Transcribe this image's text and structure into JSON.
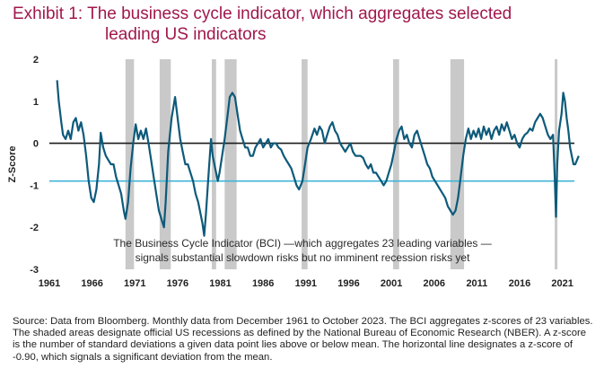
{
  "title_line1": "Exhibit 1: The business cycle indicator, which aggregates selected",
  "title_line2": "leading US indicators",
  "source": "Source: Data from Bloomberg. Monthly data from December 1961 to October 2023. The BCI aggregates z-scores of 23 variables. The shaded areas designate official US recessions as defined by the National Bureau of Economic Research (NBER). A z-score is the number of standard deviations a given data point lies above or below mean. The horizontal line designates a z-score of -0.90, which signals a significant deviation from the mean.",
  "chart_data": {
    "type": "line",
    "ylabel": "Z-Score",
    "xlabel": "",
    "xlim": [
      1961,
      2022.4
    ],
    "ylim": [
      -3,
      2
    ],
    "x_ticks": [
      1961,
      1966,
      1971,
      1976,
      1981,
      1986,
      1991,
      1996,
      2001,
      2006,
      2011,
      2016,
      2021
    ],
    "y_ticks": [
      2,
      1,
      0,
      -1,
      -2,
      -3
    ],
    "threshold": -0.9,
    "zero_line": 0,
    "annotation_line1": "The Business Cycle Indicator (BCI) —which aggregates 23 leading variables —",
    "annotation_line2": "signals substantial slowdown risks but no imminent recession risks yet",
    "recessions": [
      [
        1969.9,
        1970.9
      ],
      [
        1973.9,
        1975.2
      ],
      [
        1980.0,
        1980.5
      ],
      [
        1981.5,
        1982.9
      ],
      [
        1990.5,
        1991.2
      ],
      [
        2001.2,
        2001.9
      ],
      [
        2007.9,
        2009.5
      ],
      [
        2020.1,
        2020.4
      ]
    ],
    "series": [
      {
        "color": "#0d5a7a",
        "points": [
          [
            1961.9,
            1.5
          ],
          [
            1962.1,
            1.0
          ],
          [
            1962.4,
            0.5
          ],
          [
            1962.6,
            0.2
          ],
          [
            1962.9,
            0.1
          ],
          [
            1963.2,
            0.3
          ],
          [
            1963.5,
            0.1
          ],
          [
            1963.8,
            0.5
          ],
          [
            1964.1,
            0.6
          ],
          [
            1964.4,
            0.3
          ],
          [
            1964.7,
            0.5
          ],
          [
            1965.0,
            0.2
          ],
          [
            1965.3,
            -0.3
          ],
          [
            1965.6,
            -0.9
          ],
          [
            1965.9,
            -1.3
          ],
          [
            1966.2,
            -1.4
          ],
          [
            1966.5,
            -1.1
          ],
          [
            1966.8,
            -0.5
          ],
          [
            1967.0,
            0.25
          ],
          [
            1967.3,
            -0.1
          ],
          [
            1967.6,
            -0.3
          ],
          [
            1967.9,
            -0.4
          ],
          [
            1968.2,
            -0.5
          ],
          [
            1968.5,
            -0.5
          ],
          [
            1968.8,
            -0.8
          ],
          [
            1969.1,
            -1.0
          ],
          [
            1969.4,
            -1.2
          ],
          [
            1969.7,
            -1.6
          ],
          [
            1969.9,
            -1.8
          ],
          [
            1970.2,
            -1.4
          ],
          [
            1970.5,
            -0.6
          ],
          [
            1970.8,
            0.0
          ],
          [
            1971.1,
            0.45
          ],
          [
            1971.4,
            0.1
          ],
          [
            1971.7,
            0.3
          ],
          [
            1972.0,
            0.1
          ],
          [
            1972.3,
            0.35
          ],
          [
            1972.6,
            0.0
          ],
          [
            1972.9,
            -0.4
          ],
          [
            1973.2,
            -0.8
          ],
          [
            1973.5,
            -1.2
          ],
          [
            1973.8,
            -1.6
          ],
          [
            1974.1,
            -1.8
          ],
          [
            1974.4,
            -2.0
          ],
          [
            1974.6,
            -1.4
          ],
          [
            1974.9,
            -0.2
          ],
          [
            1975.3,
            0.6
          ],
          [
            1975.7,
            1.1
          ],
          [
            1976.0,
            0.6
          ],
          [
            1976.3,
            0.1
          ],
          [
            1976.6,
            -0.2
          ],
          [
            1976.9,
            -0.5
          ],
          [
            1977.2,
            -0.5
          ],
          [
            1977.5,
            -0.7
          ],
          [
            1977.8,
            -0.9
          ],
          [
            1978.1,
            -1.2
          ],
          [
            1978.4,
            -1.4
          ],
          [
            1978.6,
            -1.6
          ],
          [
            1978.9,
            -1.9
          ],
          [
            1979.1,
            -2.2
          ],
          [
            1979.3,
            -1.7
          ],
          [
            1979.6,
            -0.8
          ],
          [
            1979.9,
            0.1
          ],
          [
            1980.1,
            -0.3
          ],
          [
            1980.4,
            -0.6
          ],
          [
            1980.7,
            -0.9
          ],
          [
            1980.9,
            -0.7
          ],
          [
            1981.2,
            -0.3
          ],
          [
            1981.5,
            0.1
          ],
          [
            1981.8,
            0.6
          ],
          [
            1982.1,
            1.1
          ],
          [
            1982.4,
            1.2
          ],
          [
            1982.7,
            1.1
          ],
          [
            1983.0,
            0.7
          ],
          [
            1983.3,
            0.3
          ],
          [
            1983.6,
            0.1
          ],
          [
            1983.9,
            -0.1
          ],
          [
            1984.2,
            -0.1
          ],
          [
            1984.5,
            -0.3
          ],
          [
            1984.8,
            -0.3
          ],
          [
            1985.1,
            -0.1
          ],
          [
            1985.4,
            0.0
          ],
          [
            1985.7,
            0.1
          ],
          [
            1986.0,
            -0.1
          ],
          [
            1986.3,
            0.0
          ],
          [
            1986.6,
            0.1
          ],
          [
            1986.9,
            -0.1
          ],
          [
            1987.2,
            0.0
          ],
          [
            1987.5,
            0.0
          ],
          [
            1987.8,
            -0.1
          ],
          [
            1988.1,
            -0.15
          ],
          [
            1988.4,
            -0.3
          ],
          [
            1988.7,
            -0.4
          ],
          [
            1989.0,
            -0.5
          ],
          [
            1989.3,
            -0.6
          ],
          [
            1989.6,
            -0.8
          ],
          [
            1989.9,
            -1.0
          ],
          [
            1990.2,
            -1.1
          ],
          [
            1990.6,
            -0.9
          ],
          [
            1990.9,
            -0.5
          ],
          [
            1991.2,
            -0.1
          ],
          [
            1991.6,
            0.1
          ],
          [
            1992.0,
            0.35
          ],
          [
            1992.3,
            0.2
          ],
          [
            1992.6,
            0.4
          ],
          [
            1992.9,
            0.3
          ],
          [
            1993.2,
            0.0
          ],
          [
            1993.5,
            0.2
          ],
          [
            1993.8,
            0.4
          ],
          [
            1994.1,
            0.5
          ],
          [
            1994.4,
            0.3
          ],
          [
            1994.7,
            0.2
          ],
          [
            1995.0,
            0.0
          ],
          [
            1995.3,
            -0.1
          ],
          [
            1995.6,
            -0.2
          ],
          [
            1995.9,
            -0.1
          ],
          [
            1996.2,
            0.0
          ],
          [
            1996.5,
            -0.2
          ],
          [
            1996.8,
            -0.3
          ],
          [
            1997.1,
            -0.3
          ],
          [
            1997.4,
            -0.3
          ],
          [
            1997.7,
            -0.35
          ],
          [
            1998.0,
            -0.5
          ],
          [
            1998.3,
            -0.6
          ],
          [
            1998.6,
            -0.5
          ],
          [
            1998.9,
            -0.7
          ],
          [
            1999.2,
            -0.7
          ],
          [
            1999.5,
            -0.8
          ],
          [
            1999.8,
            -0.9
          ],
          [
            2000.1,
            -1.0
          ],
          [
            2000.4,
            -0.9
          ],
          [
            2000.7,
            -0.7
          ],
          [
            2001.0,
            -0.5
          ],
          [
            2001.3,
            -0.2
          ],
          [
            2001.6,
            0.1
          ],
          [
            2001.9,
            0.3
          ],
          [
            2002.2,
            0.4
          ],
          [
            2002.5,
            0.1
          ],
          [
            2002.8,
            0.2
          ],
          [
            2003.1,
            0.0
          ],
          [
            2003.4,
            -0.1
          ],
          [
            2003.7,
            0.2
          ],
          [
            2004.0,
            0.3
          ],
          [
            2004.3,
            0.1
          ],
          [
            2004.6,
            -0.1
          ],
          [
            2004.9,
            -0.3
          ],
          [
            2005.2,
            -0.5
          ],
          [
            2005.5,
            -0.6
          ],
          [
            2005.8,
            -0.8
          ],
          [
            2006.1,
            -0.9
          ],
          [
            2006.4,
            -1.0
          ],
          [
            2006.7,
            -1.1
          ],
          [
            2007.0,
            -1.2
          ],
          [
            2007.3,
            -1.3
          ],
          [
            2007.6,
            -1.5
          ],
          [
            2007.9,
            -1.6
          ],
          [
            2008.2,
            -1.7
          ],
          [
            2008.5,
            -1.6
          ],
          [
            2008.8,
            -1.3
          ],
          [
            2009.1,
            -0.8
          ],
          [
            2009.4,
            -0.3
          ],
          [
            2009.7,
            0.1
          ],
          [
            2010.0,
            0.35
          ],
          [
            2010.3,
            0.1
          ],
          [
            2010.6,
            0.3
          ],
          [
            2010.9,
            0.15
          ],
          [
            2011.2,
            0.35
          ],
          [
            2011.5,
            0.1
          ],
          [
            2011.8,
            0.4
          ],
          [
            2012.1,
            0.2
          ],
          [
            2012.4,
            0.35
          ],
          [
            2012.7,
            0.1
          ],
          [
            2013.0,
            0.3
          ],
          [
            2013.3,
            0.4
          ],
          [
            2013.6,
            0.2
          ],
          [
            2013.9,
            0.45
          ],
          [
            2014.2,
            0.3
          ],
          [
            2014.5,
            0.5
          ],
          [
            2014.8,
            0.3
          ],
          [
            2015.1,
            0.1
          ],
          [
            2015.4,
            0.2
          ],
          [
            2015.7,
            0.0
          ],
          [
            2016.0,
            -0.1
          ],
          [
            2016.3,
            0.1
          ],
          [
            2016.6,
            0.2
          ],
          [
            2016.9,
            0.25
          ],
          [
            2017.2,
            0.35
          ],
          [
            2017.5,
            0.3
          ],
          [
            2017.8,
            0.5
          ],
          [
            2018.1,
            0.6
          ],
          [
            2018.4,
            0.7
          ],
          [
            2018.7,
            0.6
          ],
          [
            2019.0,
            0.4
          ],
          [
            2019.3,
            0.2
          ],
          [
            2019.6,
            0.1
          ],
          [
            2019.9,
            0.2
          ],
          [
            2020.1,
            -0.8
          ],
          [
            2020.25,
            -1.75
          ],
          [
            2020.4,
            -0.5
          ],
          [
            2020.6,
            0.3
          ],
          [
            2020.9,
            0.7
          ],
          [
            2021.1,
            1.2
          ],
          [
            2021.3,
            1.0
          ],
          [
            2021.5,
            0.6
          ],
          [
            2021.7,
            0.3
          ],
          [
            2021.9,
            -0.1
          ],
          [
            2022.1,
            -0.3
          ],
          [
            2022.3,
            -0.5
          ],
          [
            2022.5,
            -0.5
          ],
          [
            2022.7,
            -0.4
          ],
          [
            2022.9,
            -0.3
          ]
        ]
      }
    ]
  }
}
